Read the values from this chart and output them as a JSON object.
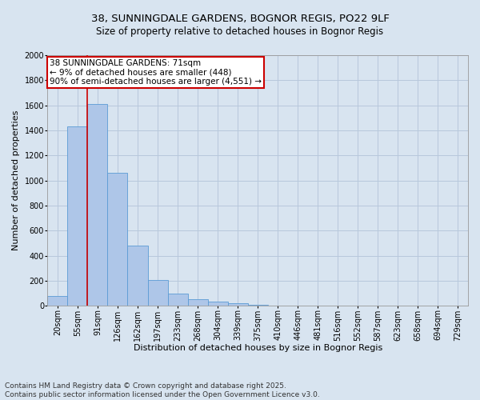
{
  "title": "38, SUNNINGDALE GARDENS, BOGNOR REGIS, PO22 9LF",
  "subtitle": "Size of property relative to detached houses in Bognor Regis",
  "xlabel": "Distribution of detached houses by size in Bognor Regis",
  "ylabel": "Number of detached properties",
  "footer_lines": [
    "Contains HM Land Registry data © Crown copyright and database right 2025.",
    "Contains public sector information licensed under the Open Government Licence v3.0."
  ],
  "categories": [
    "20sqm",
    "55sqm",
    "91sqm",
    "126sqm",
    "162sqm",
    "197sqm",
    "233sqm",
    "268sqm",
    "304sqm",
    "339sqm",
    "375sqm",
    "410sqm",
    "446sqm",
    "481sqm",
    "516sqm",
    "552sqm",
    "587sqm",
    "623sqm",
    "658sqm",
    "694sqm",
    "729sqm"
  ],
  "values": [
    75,
    1430,
    1610,
    1060,
    480,
    205,
    100,
    55,
    30,
    20,
    10,
    0,
    0,
    0,
    0,
    0,
    0,
    0,
    0,
    0,
    0
  ],
  "bar_color": "#aec6e8",
  "bar_edge_color": "#5b9bd5",
  "grid_color": "#b8c8dc",
  "background_color": "#d8e4f0",
  "plot_bg_color": "#d8e4f0",
  "annotation_text": "38 SUNNINGDALE GARDENS: 71sqm\n← 9% of detached houses are smaller (448)\n90% of semi-detached houses are larger (4,551) →",
  "annotation_box_color": "#ffffff",
  "annotation_edge_color": "#cc0000",
  "vline_color": "#cc0000",
  "vline_x": 1.47,
  "ylim": [
    0,
    2000
  ],
  "yticks": [
    0,
    200,
    400,
    600,
    800,
    1000,
    1200,
    1400,
    1600,
    1800,
    2000
  ],
  "title_fontsize": 9.5,
  "subtitle_fontsize": 8.5,
  "axis_label_fontsize": 8,
  "tick_fontsize": 7,
  "annotation_fontsize": 7.5,
  "footer_fontsize": 6.5,
  "ylabel_fontsize": 8
}
